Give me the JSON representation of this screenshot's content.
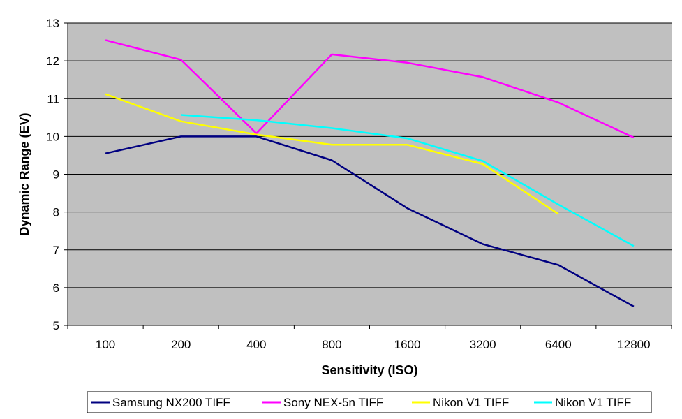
{
  "chart_data": {
    "type": "line",
    "title": "",
    "xlabel": "Sensitivity (ISO)",
    "ylabel": "Dynamic Range (EV)",
    "categories": [
      "100",
      "200",
      "400",
      "800",
      "1600",
      "3200",
      "6400",
      "12800"
    ],
    "ylim": [
      5,
      13
    ],
    "yticks": [
      5,
      6,
      7,
      8,
      9,
      10,
      11,
      12,
      13
    ],
    "grid": true,
    "legend_position": "bottom",
    "plot_background": "#C0C0C0",
    "series": [
      {
        "name": "Samsung NX200 TIFF",
        "color": "#000080",
        "values": [
          9.55,
          10.0,
          10.0,
          9.37,
          8.1,
          7.15,
          6.6,
          5.5
        ]
      },
      {
        "name": "Sony NEX-5n TIFF",
        "color": "#FF00FF",
        "values": [
          12.55,
          12.03,
          10.08,
          12.17,
          11.95,
          11.57,
          10.9,
          9.97
        ]
      },
      {
        "name": "Nikon V1 TIFF",
        "color": "#FFFF00",
        "values": [
          11.12,
          10.4,
          10.05,
          9.78,
          9.78,
          9.27,
          7.95,
          null
        ]
      },
      {
        "name": "Nikon V1 TIFF",
        "color": "#00FFFF",
        "values": [
          null,
          10.57,
          10.43,
          10.22,
          9.95,
          9.35,
          8.2,
          7.1
        ]
      }
    ]
  }
}
